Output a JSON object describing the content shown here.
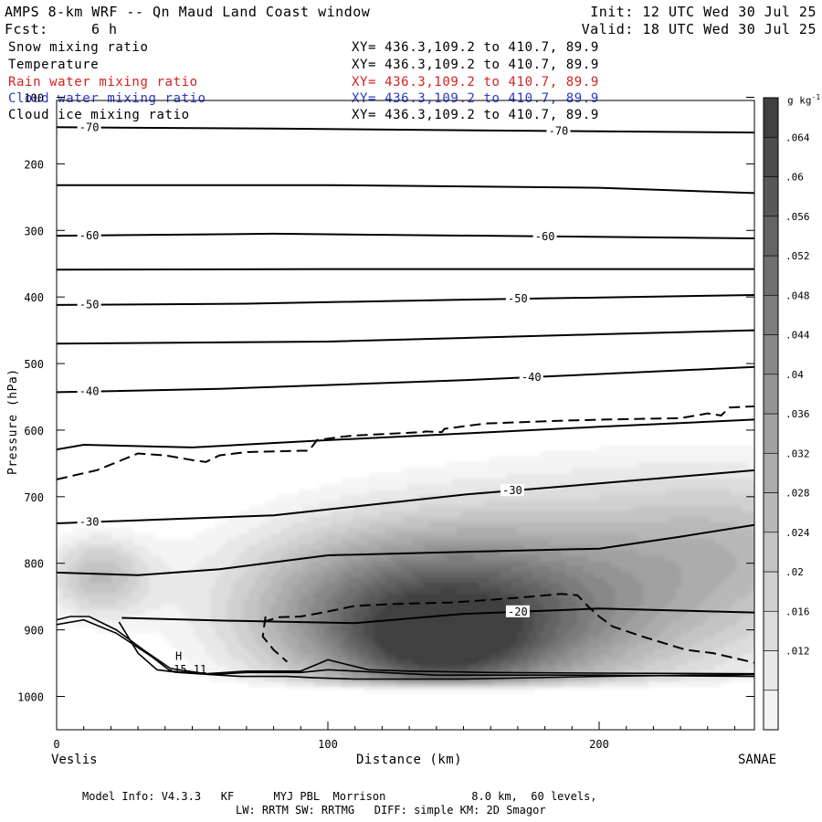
{
  "header": {
    "title": "AMPS 8-km WRF -- Qn Maud Land Coast window",
    "fcst_label": "Fcst:",
    "fcst_value": "6 h",
    "init": "Init: 12 UTC Wed 30 Jul 25",
    "valid": "Valid: 18 UTC Wed 30 Jul 25"
  },
  "fields": [
    {
      "name": "Snow mixing ratio",
      "xy": "XY= 436.3,109.2 to 410.7, 89.9",
      "color": "#000000"
    },
    {
      "name": "Temperature",
      "xy": "XY= 436.3,109.2 to 410.7, 89.9",
      "color": "#000000"
    },
    {
      "name": "Rain water mixing ratio",
      "xy": "XY= 436.3,109.2 to 410.7, 89.9",
      "color": "#d62020"
    },
    {
      "name": "Cloud water mixing ratio",
      "xy": "XY= 436.3,109.2 to 410.7, 89.9",
      "color": "#2a3bd0"
    },
    {
      "name": "Cloud ice mixing ratio",
      "xy": "XY= 436.3,109.2 to 410.7, 89.9",
      "color": "#000000"
    }
  ],
  "chart_data": {
    "type": "heatmap",
    "title": "AMPS 8-km WRF -- Qn Maud Land Coast window",
    "xlabel": "Distance (km)",
    "ylabel": "Pressure (hPa)",
    "xlim": [
      0,
      258
    ],
    "ylim": [
      1050,
      100
    ],
    "x_ticks": [
      0,
      100,
      200
    ],
    "y_ticks": [
      100,
      200,
      300,
      400,
      500,
      600,
      700,
      800,
      900,
      1000
    ],
    "x_end_labels": {
      "left": "Veslis",
      "right": "SANAE"
    },
    "colorbar": {
      "unit": "g kg-1",
      "tick_labels": [
        ".064",
        ".06",
        ".056",
        ".052",
        ".048",
        ".044",
        ".04",
        ".036",
        ".032",
        ".028",
        ".024",
        ".02",
        ".016",
        ".012"
      ],
      "levels": [
        0.008,
        0.012,
        0.016,
        0.02,
        0.024,
        0.028,
        0.032,
        0.036,
        0.04,
        0.044,
        0.048,
        0.052,
        0.056,
        0.06,
        0.064,
        0.068
      ]
    },
    "snow_blobs": [
      {
        "x": 15,
        "p": 820,
        "sx": 14,
        "sp": 45,
        "amp": 0.026
      },
      {
        "x": 140,
        "p": 900,
        "sx": 45,
        "sp": 80,
        "amp": 0.05
      },
      {
        "x": 142,
        "p": 930,
        "sx": 20,
        "sp": 40,
        "amp": 0.02
      },
      {
        "x": 120,
        "p": 820,
        "sx": 50,
        "sp": 90,
        "amp": 0.018
      },
      {
        "x": 215,
        "p": 820,
        "sx": 60,
        "sp": 120,
        "amp": 0.026
      },
      {
        "x": 255,
        "p": 760,
        "sx": 30,
        "sp": 80,
        "amp": 0.01
      }
    ],
    "temperature_isotherms": [
      {
        "label": "-70",
        "label_left": true,
        "label_right_x": 185,
        "points": [
          [
            0,
            145
          ],
          [
            80,
            147
          ],
          [
            160,
            150
          ],
          [
            258,
            153
          ]
        ]
      },
      {
        "label": "",
        "points": [
          [
            0,
            232
          ],
          [
            100,
            232
          ],
          [
            200,
            236
          ],
          [
            258,
            244
          ]
        ]
      },
      {
        "label": "-60",
        "label_left": true,
        "label_right_x": 180,
        "points": [
          [
            0,
            308
          ],
          [
            80,
            305
          ],
          [
            180,
            309
          ],
          [
            258,
            312
          ]
        ]
      },
      {
        "label": "",
        "points": [
          [
            0,
            359
          ],
          [
            100,
            358
          ],
          [
            200,
            358
          ],
          [
            258,
            358
          ]
        ]
      },
      {
        "label": "-50",
        "label_left": true,
        "label_right_x": 170,
        "points": [
          [
            0,
            412
          ],
          [
            70,
            410
          ],
          [
            150,
            404
          ],
          [
            258,
            397
          ]
        ]
      },
      {
        "label": "",
        "points": [
          [
            0,
            470
          ],
          [
            100,
            467
          ],
          [
            200,
            456
          ],
          [
            258,
            450
          ]
        ]
      },
      {
        "label": "-40",
        "label_left": true,
        "label_right_x": 175,
        "points": [
          [
            0,
            543
          ],
          [
            60,
            538
          ],
          [
            150,
            525
          ],
          [
            258,
            505
          ]
        ]
      },
      {
        "label": "",
        "points": [
          [
            0,
            629
          ],
          [
            10,
            622
          ],
          [
            50,
            626
          ],
          [
            100,
            615
          ],
          [
            150,
            605
          ],
          [
            200,
            595
          ],
          [
            258,
            584
          ]
        ]
      },
      {
        "label": "-30",
        "label_left": true,
        "label_right_x": 168,
        "points": [
          [
            0,
            740
          ],
          [
            80,
            728
          ],
          [
            150,
            697
          ],
          [
            200,
            680
          ],
          [
            258,
            660
          ]
        ]
      },
      {
        "label": "",
        "points": [
          [
            0,
            814
          ],
          [
            30,
            818
          ],
          [
            60,
            809
          ],
          [
            100,
            788
          ],
          [
            150,
            783
          ],
          [
            200,
            778
          ],
          [
            230,
            760
          ],
          [
            258,
            742
          ]
        ]
      },
      {
        "label": "-20",
        "label_left": false,
        "label_right_x": 170,
        "points": [
          [
            24,
            882
          ],
          [
            60,
            886
          ],
          [
            110,
            890
          ],
          [
            150,
            876
          ],
          [
            200,
            868
          ],
          [
            258,
            874
          ]
        ]
      }
    ],
    "ice_dashed": [
      {
        "points": [
          [
            0,
            674
          ],
          [
            15,
            660
          ],
          [
            30,
            635
          ],
          [
            40,
            638
          ],
          [
            50,
            645
          ],
          [
            55,
            648
          ],
          [
            60,
            638
          ],
          [
            70,
            633
          ],
          [
            90,
            631
          ],
          [
            93,
            631
          ],
          [
            96,
            615
          ],
          [
            105,
            610
          ],
          [
            110,
            608
          ],
          [
            135,
            603
          ],
          [
            136,
            602
          ],
          [
            142,
            603
          ],
          [
            143,
            598
          ],
          [
            158,
            590
          ],
          [
            185,
            586
          ],
          [
            203,
            584
          ],
          [
            230,
            582
          ],
          [
            240,
            575
          ],
          [
            245,
            578
          ],
          [
            248,
            566
          ],
          [
            258,
            564
          ]
        ]
      },
      {
        "points": [
          [
            76,
            888
          ],
          [
            82,
            881
          ],
          [
            90,
            880
          ],
          [
            98,
            874
          ],
          [
            110,
            864
          ],
          [
            125,
            861
          ],
          [
            145,
            859
          ],
          [
            160,
            855
          ],
          [
            175,
            850
          ],
          [
            186,
            846
          ],
          [
            192,
            848
          ],
          [
            196,
            865
          ],
          [
            200,
            880
          ],
          [
            205,
            895
          ],
          [
            216,
            910
          ],
          [
            232,
            930
          ],
          [
            242,
            935
          ],
          [
            258,
            950
          ]
        ]
      },
      {
        "points": [
          [
            77,
            880
          ],
          [
            76,
            910
          ],
          [
            80,
            930
          ],
          [
            85,
            948
          ]
        ]
      }
    ],
    "terrain_lines": [
      {
        "points": [
          [
            0,
            885
          ],
          [
            5,
            880
          ],
          [
            12,
            880
          ],
          [
            22,
            900
          ],
          [
            32,
            930
          ],
          [
            42,
            958
          ],
          [
            55,
            966
          ],
          [
            70,
            962
          ],
          [
            90,
            962
          ],
          [
            97,
            950
          ],
          [
            100,
            945
          ],
          [
            115,
            960
          ],
          [
            130,
            962
          ],
          [
            160,
            964
          ],
          [
            200,
            965
          ],
          [
            258,
            966
          ]
        ]
      },
      {
        "points": [
          [
            0,
            892
          ],
          [
            10,
            885
          ],
          [
            22,
            905
          ],
          [
            35,
            940
          ],
          [
            42,
            962
          ],
          [
            58,
            967
          ],
          [
            70,
            964
          ],
          [
            90,
            964
          ],
          [
            100,
            960
          ],
          [
            140,
            968
          ],
          [
            200,
            968
          ],
          [
            258,
            970
          ]
        ]
      },
      {
        "points": [
          [
            23,
            888
          ],
          [
            30,
            935
          ],
          [
            37,
            960
          ],
          [
            45,
            964
          ],
          [
            60,
            968
          ],
          [
            68,
            970
          ],
          [
            85,
            970
          ],
          [
            95,
            972
          ],
          [
            110,
            974
          ],
          [
            150,
            974
          ],
          [
            200,
            970
          ],
          [
            258,
            967
          ]
        ]
      }
    ],
    "annotations": [
      {
        "text": "H",
        "x": 45,
        "p": 945
      },
      {
        "text": "-15.11",
        "x": 48,
        "p": 965
      }
    ]
  },
  "footer": {
    "line1": "Model Info: V4.3.3   KF      MYJ PBL  Morrison             8.0 km,  60 levels,",
    "line2": "LW: RRTM SW: RRTMG   DIFF: simple KM: 2D Smagor"
  }
}
